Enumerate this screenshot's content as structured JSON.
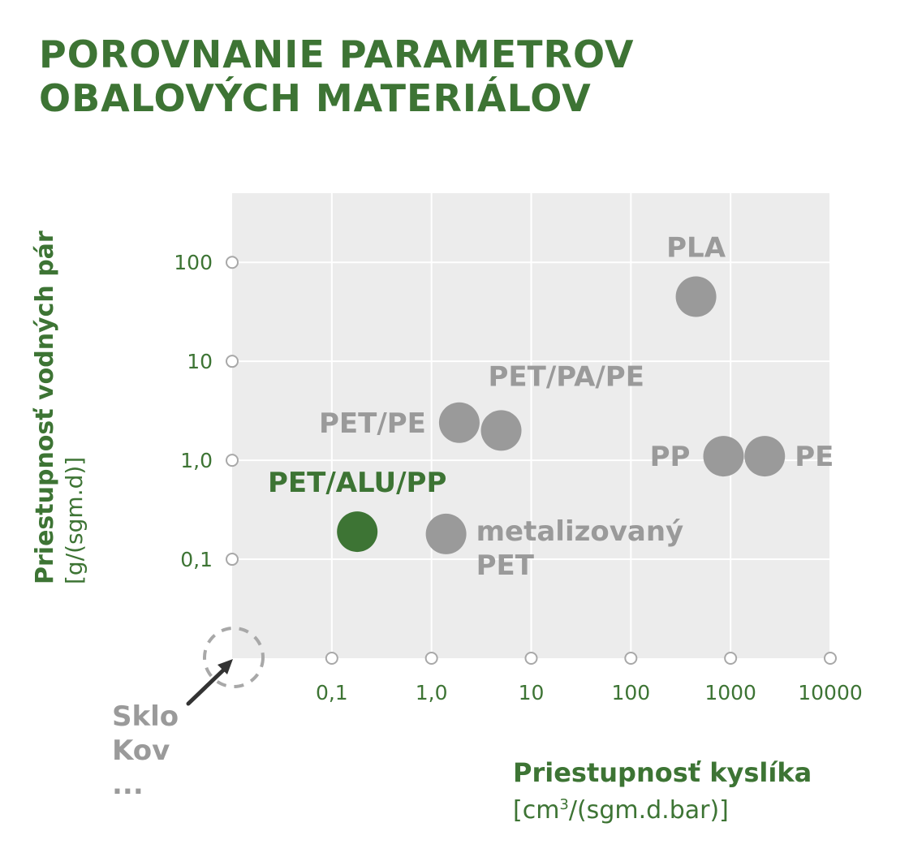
{
  "title": {
    "line1": "POROVNANIE PARAMETROV",
    "line2": "OBALOVÝCH MATERIÁLOV"
  },
  "chart_data": {
    "type": "scatter",
    "title": "POROVNANIE PARAMETROV OBALOVÝCH MATERIÁLOV",
    "x_scale": "log",
    "y_scale": "log",
    "xlabel": "Priestupnosť kyslíka",
    "xlabel_unit_prefix": "[cm",
    "xlabel_unit_sup": "3",
    "xlabel_unit_suffix": "/(sgm.d.bar)]",
    "ylabel": "Priestupnosť vodných pár",
    "ylabel_unit": "[g/(sgm.d)]",
    "xlim": [
      0.01,
      10000
    ],
    "ylim": [
      0.01,
      500
    ],
    "grid": true,
    "x_ticks": [
      {
        "value": 0.1,
        "label": "0,1"
      },
      {
        "value": 1,
        "label": "1,0"
      },
      {
        "value": 10,
        "label": "10"
      },
      {
        "value": 100,
        "label": "100"
      },
      {
        "value": 1000,
        "label": "1000"
      },
      {
        "value": 10000,
        "label": "10000"
      }
    ],
    "y_ticks": [
      {
        "value": 0.1,
        "label": "0,1"
      },
      {
        "value": 1,
        "label": "1,0"
      },
      {
        "value": 10,
        "label": "10"
      },
      {
        "value": 100,
        "label": "100"
      }
    ],
    "points": [
      {
        "label": "PLA",
        "lines": [
          "PLA"
        ],
        "x": 450,
        "y": 45,
        "color": "#9a9a9a",
        "label_pos": "above"
      },
      {
        "label": "PET/PE",
        "lines": [
          "PET/PE"
        ],
        "x": 1.9,
        "y": 2.4,
        "color": "#9a9a9a",
        "label_pos": "left"
      },
      {
        "label": "PET/PA/PE",
        "lines": [
          "PET/PA/PE"
        ],
        "x": 5,
        "y": 2,
        "color": "#9a9a9a",
        "label_pos": "above-right"
      },
      {
        "label": "PP",
        "lines": [
          "PP"
        ],
        "x": 850,
        "y": 1.1,
        "color": "#9a9a9a",
        "label_pos": "left"
      },
      {
        "label": "PE",
        "lines": [
          "PE"
        ],
        "x": 2200,
        "y": 1.1,
        "color": "#9a9a9a",
        "label_pos": "right"
      },
      {
        "label": "PET/ALU/PP",
        "lines": [
          "PET/ALU/PP"
        ],
        "x": 0.18,
        "y": 0.19,
        "color": "#3d7434",
        "label_pos": "above"
      },
      {
        "label": "metalizovaný PET",
        "lines": [
          "metalizovaný",
          "PET"
        ],
        "x": 1.4,
        "y": 0.18,
        "color": "#9a9a9a",
        "label_pos": "right"
      }
    ],
    "origin_annotation": [
      "Sklo",
      "Kov",
      "..."
    ]
  },
  "colors": {
    "accent": "#3d7434",
    "point_gray": "#9a9a9a",
    "plot_bg": "#ececec",
    "grid": "#ffffff",
    "arrow": "#333333"
  }
}
